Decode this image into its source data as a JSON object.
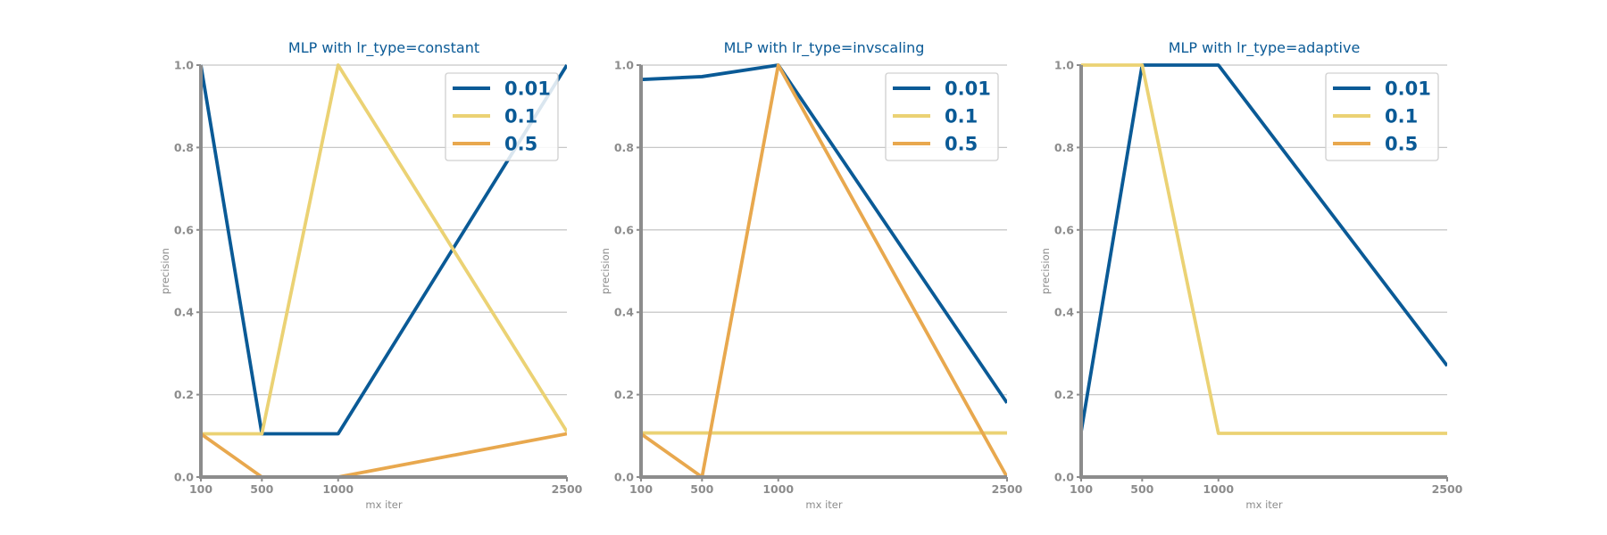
{
  "chart_data": [
    {
      "type": "line",
      "title": "MLP with lr_type=constant",
      "xlabel": "mx iter",
      "ylabel": "precision",
      "x": [
        100,
        500,
        1000,
        2500
      ],
      "xticks": [
        "100",
        "500",
        "1000",
        "2500"
      ],
      "xlim": [
        100,
        2500
      ],
      "ylim": [
        0,
        1
      ],
      "yticks": [
        "0.0",
        "0.2",
        "0.4",
        "0.6",
        "0.8",
        "1.0"
      ],
      "grid": "horizontal",
      "legend_position": "top-right",
      "series": [
        {
          "name": "0.01",
          "color": "#0a5a96",
          "values": [
            1.0,
            0.105,
            0.105,
            1.0
          ]
        },
        {
          "name": "0.1",
          "color": "#ebd274",
          "values": [
            0.105,
            0.105,
            1.0,
            0.11
          ]
        },
        {
          "name": "0.5",
          "color": "#e8a84e",
          "values": [
            0.105,
            0.0,
            0.0,
            0.105
          ]
        }
      ]
    },
    {
      "type": "line",
      "title": "MLP with lr_type=invscaling",
      "xlabel": "mx iter",
      "ylabel": "precision",
      "x": [
        100,
        500,
        1000,
        2500
      ],
      "xticks": [
        "100",
        "500",
        "1000",
        "2500"
      ],
      "xlim": [
        100,
        2500
      ],
      "ylim": [
        0,
        1
      ],
      "yticks": [
        "0.0",
        "0.2",
        "0.4",
        "0.6",
        "0.8",
        "1.0"
      ],
      "grid": "horizontal",
      "legend_position": "top-right",
      "series": [
        {
          "name": "0.01",
          "color": "#0a5a96",
          "values": [
            0.965,
            0.972,
            1.0,
            0.18
          ]
        },
        {
          "name": "0.1",
          "color": "#ebd274",
          "values": [
            0.107,
            0.107,
            0.107,
            0.107
          ]
        },
        {
          "name": "0.5",
          "color": "#e8a84e",
          "values": [
            0.105,
            0.0,
            1.0,
            0.0
          ]
        }
      ]
    },
    {
      "type": "line",
      "title": "MLP with lr_type=adaptive",
      "xlabel": "mx iter",
      "ylabel": "precision",
      "x": [
        100,
        500,
        1000,
        2500
      ],
      "xticks": [
        "100",
        "500",
        "1000",
        "2500"
      ],
      "xlim": [
        100,
        2500
      ],
      "ylim": [
        0,
        1
      ],
      "yticks": [
        "0.0",
        "0.2",
        "0.4",
        "0.6",
        "0.8",
        "1.0"
      ],
      "grid": "horizontal",
      "legend_position": "top-right",
      "series": [
        {
          "name": "0.01",
          "color": "#0a5a96",
          "values": [
            0.11,
            1.0,
            1.0,
            0.27
          ]
        },
        {
          "name": "0.1",
          "color": "#ebd274",
          "values": [
            1.0,
            1.0,
            0.106,
            0.106
          ]
        },
        {
          "name": "0.5",
          "color": "#e8a84e",
          "values": [
            null,
            null,
            null,
            null
          ]
        }
      ]
    }
  ]
}
